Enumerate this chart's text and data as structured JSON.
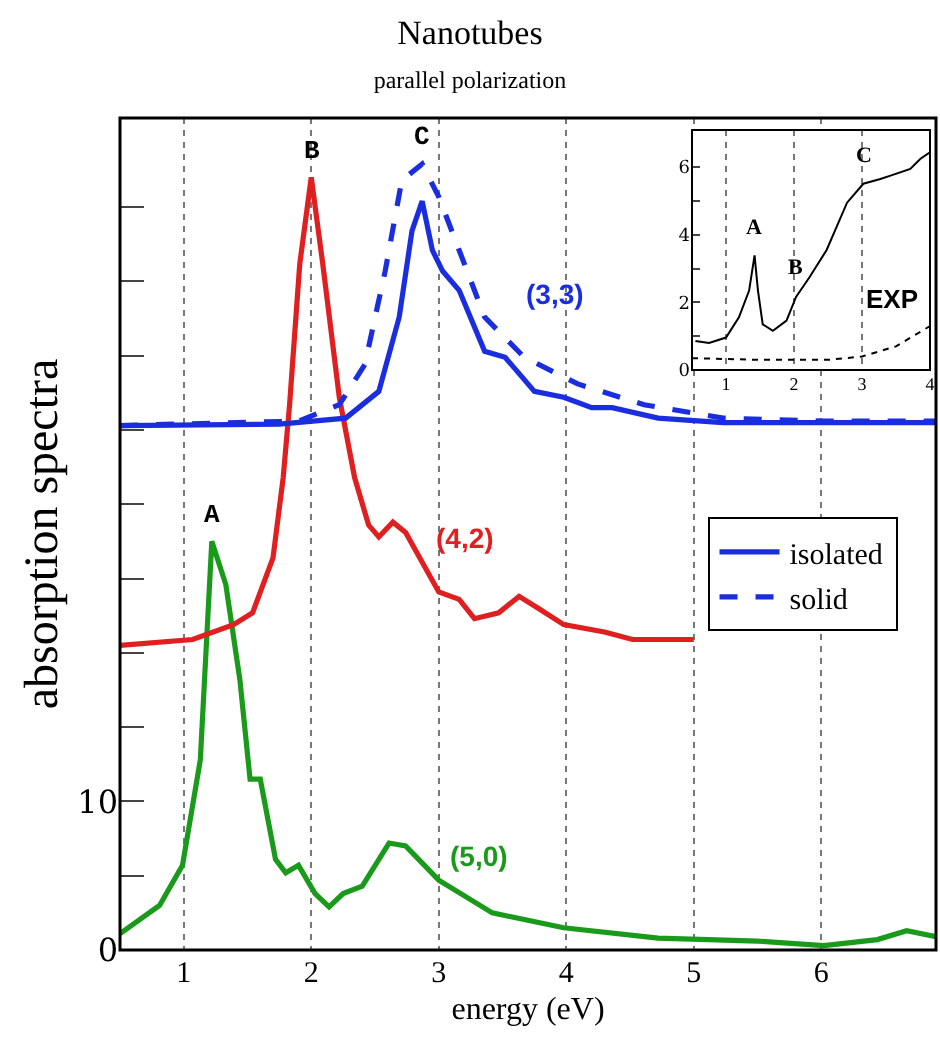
{
  "chart_data": [
    {
      "type": "line",
      "title": "Nanotubes",
      "subtitle": "parallel polarization",
      "xlabel": "energy (eV)",
      "ylabel": "absorption spectra",
      "xlim": [
        0.5,
        6.9
      ],
      "ylim": [
        0,
        56
      ],
      "xticks": [
        1,
        2,
        3,
        4,
        5,
        6
      ],
      "yticks": [
        0,
        {
          "value": 5,
          "label": null
        },
        10,
        {
          "value": 15,
          "label": null
        },
        {
          "value": 20,
          "label": null
        },
        {
          "value": 25,
          "label": null
        },
        {
          "value": 30,
          "label": null
        },
        {
          "value": 35,
          "label": null
        },
        {
          "value": 40,
          "label": null
        },
        {
          "value": 45,
          "label": null
        },
        {
          "value": 50,
          "label": null
        }
      ],
      "grid": "x",
      "legend": "right",
      "series": [
        {
          "color": "#1a9a1a",
          "x": [
            0.5,
            0.81,
            0.99,
            1.13,
            1.22,
            1.33,
            1.44,
            1.52,
            1.6,
            1.72,
            1.8,
            1.9,
            2.03,
            2.14,
            2.25,
            2.4,
            2.61,
            2.74,
            3.0,
            3.42,
            3.98,
            4.72,
            5.5,
            6.02,
            6.44,
            6.67,
            6.9
          ],
          "values": [
            1.1,
            3.0,
            5.7,
            12.8,
            27.5,
            24.6,
            18.2,
            11.5,
            11.5,
            6.1,
            5.2,
            5.7,
            3.8,
            2.9,
            3.8,
            4.3,
            7.2,
            7.0,
            4.7,
            2.5,
            1.5,
            0.8,
            0.6,
            0.3,
            0.7,
            1.3,
            0.9
          ]
        },
        {
          "color": "#e02020",
          "x": [
            0.5,
            1.07,
            1.39,
            1.54,
            1.7,
            1.78,
            1.83,
            1.91,
            2.0,
            2.09,
            2.22,
            2.34,
            2.45,
            2.53,
            2.64,
            2.74,
            3.0,
            3.16,
            3.28,
            3.47,
            3.63,
            3.78,
            3.98,
            4.3,
            4.52,
            5.0
          ],
          "values": [
            20.5,
            20.9,
            21.9,
            22.7,
            26.4,
            31.8,
            36.7,
            46.2,
            52.0,
            46.2,
            37.2,
            31.8,
            28.6,
            27.8,
            28.8,
            28.1,
            24.1,
            23.6,
            22.3,
            22.7,
            23.8,
            23.0,
            21.9,
            21.4,
            20.9,
            20.9
          ]
        },
        {
          "name": "isolated",
          "color": "#1a2ee0",
          "line_style": "solid",
          "x": [
            0.5,
            1.75,
            2.27,
            2.53,
            2.69,
            2.79,
            2.87,
            2.95,
            3.03,
            3.16,
            3.36,
            3.52,
            3.75,
            3.98,
            4.2,
            4.36,
            4.72,
            5.23,
            6.9
          ],
          "values": [
            35.3,
            35.4,
            35.8,
            37.6,
            42.6,
            48.4,
            50.4,
            47.1,
            45.7,
            44.4,
            40.3,
            39.9,
            37.6,
            37.2,
            36.5,
            36.5,
            35.8,
            35.5,
            35.5
          ]
        },
        {
          "name": "solid",
          "color": "#1a2ee0",
          "line_style": "dashed",
          "x": [
            0.5,
            1.9,
            2.22,
            2.42,
            2.58,
            2.71,
            2.87,
            3.0,
            3.16,
            3.36,
            3.67,
            4.09,
            4.61,
            5.23,
            6.02,
            6.9
          ],
          "values": [
            35.3,
            35.6,
            36.7,
            39.4,
            45.7,
            51.8,
            52.9,
            50.7,
            47.1,
            42.6,
            39.9,
            38.1,
            36.7,
            35.8,
            35.6,
            35.6
          ]
        }
      ],
      "annotations": [
        {
          "text": "A",
          "x": 1.22,
          "y": 27.5
        },
        {
          "text": "B",
          "x": 2.0,
          "y": 52.0
        },
        {
          "text": "C",
          "x": 2.87,
          "y": 52.9
        },
        "(3,3)",
        "(4,2)",
        "(5,0)"
      ]
    },
    {
      "type": "line",
      "xlim": [
        0.5,
        4
      ],
      "ylim": [
        0,
        7.1
      ],
      "xticks": [
        1,
        2,
        3,
        4
      ],
      "yticks": [
        0,
        {
          "value": 1,
          "label": null
        },
        2,
        {
          "value": 3,
          "label": null
        },
        4,
        {
          "value": 5,
          "label": null
        },
        6
      ],
      "grid": "x",
      "series": [
        {
          "color": "#000000",
          "line_style": "solid",
          "x": [
            0.55,
            0.75,
            1.0,
            1.19,
            1.34,
            1.42,
            1.47,
            1.54,
            1.69,
            1.89,
            2.03,
            2.23,
            2.48,
            2.78,
            3.02,
            3.27,
            3.42,
            3.71,
            3.86,
            4.0
          ],
          "values": [
            0.86,
            0.8,
            0.96,
            1.56,
            2.35,
            3.39,
            2.35,
            1.35,
            1.16,
            1.46,
            2.16,
            2.75,
            3.55,
            4.95,
            5.51,
            5.65,
            5.75,
            5.95,
            6.25,
            6.44
          ]
        },
        {
          "color": "#000000",
          "line_style": "dotted",
          "x": [
            0.5,
            1.5,
            2.5,
            3.0,
            3.5,
            4.0
          ],
          "values": [
            0.35,
            0.3,
            0.3,
            0.4,
            0.7,
            1.3
          ]
        }
      ],
      "annotations": [
        {
          "text": "A",
          "x": 1.42,
          "y": 3.39
        },
        {
          "text": "B",
          "x": 2.03,
          "y": 2.16
        },
        {
          "text": "C",
          "x": 3.02,
          "y": 5.51
        },
        "EXP"
      ]
    }
  ]
}
